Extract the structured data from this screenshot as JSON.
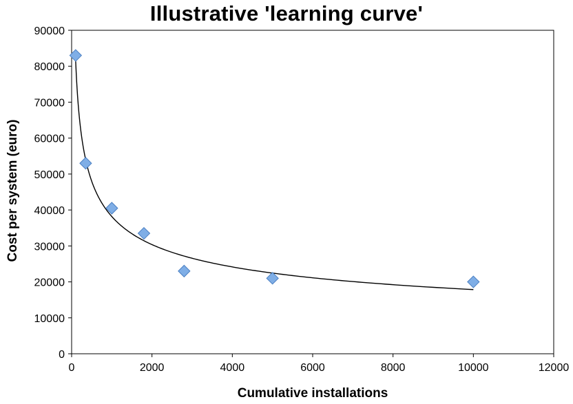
{
  "chart_data": {
    "type": "scatter",
    "title": "Illustrative 'learning curve'",
    "xlabel": "Cumulative installations",
    "ylabel": "Cost per system (euro)",
    "xlim": [
      0,
      12000
    ],
    "ylim": [
      0,
      90000
    ],
    "x_ticks": [
      0,
      2000,
      4000,
      6000,
      8000,
      10000,
      12000
    ],
    "y_ticks": [
      0,
      10000,
      20000,
      30000,
      40000,
      50000,
      60000,
      70000,
      80000,
      90000
    ],
    "grid": false,
    "legend": "none",
    "marker": "diamond",
    "marker_color": "#7faee6",
    "marker_edge_color": "#4a7fc2",
    "trendline": {
      "type": "power",
      "x_range": [
        100,
        10000
      ],
      "color": "#000000"
    },
    "points": [
      {
        "x": 100,
        "y": 83000
      },
      {
        "x": 350,
        "y": 53000
      },
      {
        "x": 1000,
        "y": 40500
      },
      {
        "x": 1800,
        "y": 33500
      },
      {
        "x": 2800,
        "y": 23000
      },
      {
        "x": 5000,
        "y": 21000
      },
      {
        "x": 10000,
        "y": 20000
      }
    ]
  }
}
